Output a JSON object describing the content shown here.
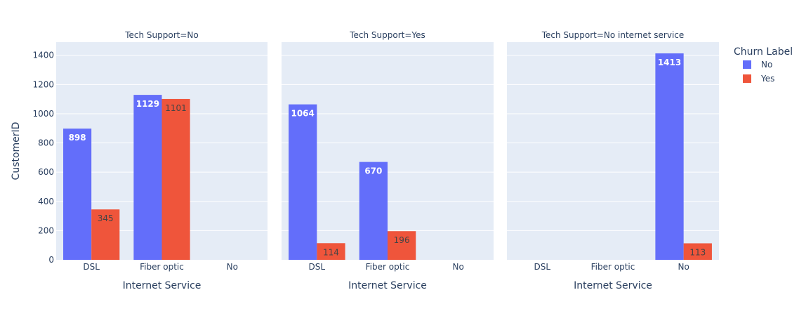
{
  "chart_data": {
    "type": "bar",
    "barmode": "group",
    "yaxis_title": "CustomerID",
    "xaxis_title": "Internet Service",
    "categories": [
      "DSL",
      "Fiber optic",
      "No"
    ],
    "ylim": [
      0,
      1490
    ],
    "yticks": [
      0,
      200,
      400,
      600,
      800,
      1000,
      1200,
      1400
    ],
    "legend": {
      "title": "Churn Label",
      "position": "top-right",
      "items": [
        {
          "name": "No",
          "color": "#636efa"
        },
        {
          "name": "Yes",
          "color": "#ef553b"
        }
      ]
    },
    "grid": true,
    "facets": [
      {
        "title": "Tech Support=No",
        "series": [
          {
            "name": "No",
            "values": [
              898,
              1129,
              null
            ]
          },
          {
            "name": "Yes",
            "values": [
              345,
              1101,
              null
            ]
          }
        ]
      },
      {
        "title": "Tech Support=Yes",
        "series": [
          {
            "name": "No",
            "values": [
              1064,
              670,
              null
            ]
          },
          {
            "name": "Yes",
            "values": [
              114,
              196,
              null
            ]
          }
        ]
      },
      {
        "title": "Tech Support=No internet service",
        "series": [
          {
            "name": "No",
            "values": [
              null,
              null,
              1413
            ]
          },
          {
            "name": "Yes",
            "values": [
              null,
              null,
              113
            ]
          }
        ]
      }
    ]
  }
}
